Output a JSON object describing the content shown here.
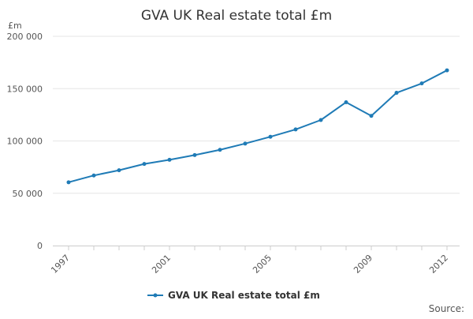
{
  "chart_data": {
    "type": "line",
    "title": "GVA UK Real estate total £m",
    "ylabel": "£m",
    "xlabel": "",
    "x": [
      1997,
      1998,
      1999,
      2000,
      2001,
      2002,
      2003,
      2004,
      2005,
      2006,
      2007,
      2008,
      2009,
      2010,
      2011,
      2012
    ],
    "x_tick_labels": [
      "1997",
      "2001",
      "2005",
      "2009",
      "2012"
    ],
    "y_tick_values": [
      0,
      50000,
      100000,
      150000,
      200000
    ],
    "y_tick_labels": [
      "0",
      "50 000",
      "100 000",
      "150 000",
      "200 000"
    ],
    "ylim": [
      0,
      200000
    ],
    "grid": true,
    "legend_position": "bottom",
    "series": [
      {
        "name": "GVA UK Real estate total £m",
        "color": "#1f7bb6",
        "values": [
          60500,
          67000,
          72000,
          78000,
          82000,
          86500,
          91500,
          97500,
          104000,
          111000,
          120000,
          137000,
          124000,
          146000,
          155000,
          167500
        ]
      }
    ],
    "source_label": "Source:"
  }
}
